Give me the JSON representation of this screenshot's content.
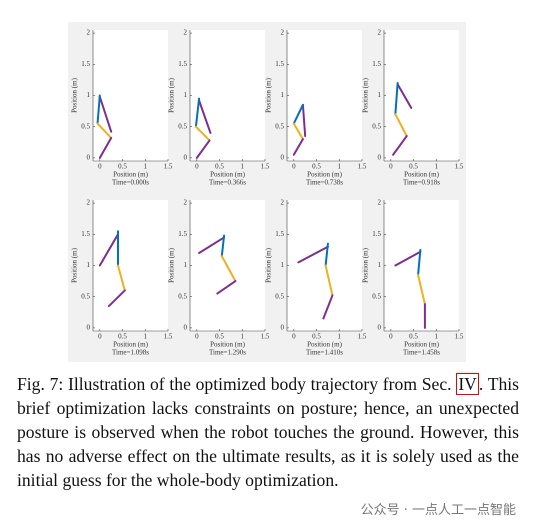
{
  "figure": {
    "xlabel": "Position (m)",
    "ylabel": "Position (m)",
    "xlim": [
      -0.15,
      1.5
    ],
    "ylim": [
      -0.05,
      2.05
    ],
    "xticks": [
      0,
      0.5,
      1,
      1.5
    ],
    "yticks": [
      0,
      0.5,
      1,
      1.5,
      2
    ],
    "panels": [
      {
        "time": "Time=0.000s",
        "body": [
          {
            "color": "#7e2f8e",
            "x": [
              0.0,
              0.25
            ],
            "y": [
              0.98,
              0.42
            ]
          },
          {
            "color": "#0072bd",
            "x": [
              -0.05,
              0.0
            ],
            "y": [
              0.55,
              1.0
            ]
          },
          {
            "color": "#edb120",
            "x": [
              -0.05,
              0.25
            ],
            "y": [
              0.55,
              0.32
            ]
          },
          {
            "color": "#7e2f8e",
            "x": [
              0.25,
              0.0
            ],
            "y": [
              0.32,
              0.0
            ]
          }
        ]
      },
      {
        "time": "Time=0.366s",
        "body": [
          {
            "color": "#7e2f8e",
            "x": [
              0.05,
              0.3
            ],
            "y": [
              0.92,
              0.4
            ]
          },
          {
            "color": "#0072bd",
            "x": [
              -0.02,
              0.05
            ],
            "y": [
              0.5,
              0.95
            ]
          },
          {
            "color": "#edb120",
            "x": [
              -0.02,
              0.28
            ],
            "y": [
              0.5,
              0.28
            ]
          },
          {
            "color": "#7e2f8e",
            "x": [
              0.28,
              0.0
            ],
            "y": [
              0.28,
              0.0
            ]
          }
        ]
      },
      {
        "time": "Time=0.738s",
        "body": [
          {
            "color": "#7e2f8e",
            "x": [
              0.2,
              0.25
            ],
            "y": [
              0.85,
              0.35
            ]
          },
          {
            "color": "#0072bd",
            "x": [
              0.0,
              0.2
            ],
            "y": [
              0.55,
              0.85
            ]
          },
          {
            "color": "#edb120",
            "x": [
              0.0,
              0.2
            ],
            "y": [
              0.55,
              0.3
            ]
          },
          {
            "color": "#7e2f8e",
            "x": [
              0.2,
              0.0
            ],
            "y": [
              0.3,
              0.05
            ]
          }
        ]
      },
      {
        "time": "Time=0.918s",
        "body": [
          {
            "color": "#7e2f8e",
            "x": [
              0.15,
              0.45
            ],
            "y": [
              1.18,
              0.8
            ]
          },
          {
            "color": "#0072bd",
            "x": [
              0.1,
              0.15
            ],
            "y": [
              0.7,
              1.2
            ]
          },
          {
            "color": "#edb120",
            "x": [
              0.1,
              0.35
            ],
            "y": [
              0.7,
              0.35
            ]
          },
          {
            "color": "#7e2f8e",
            "x": [
              0.35,
              0.05
            ],
            "y": [
              0.35,
              0.05
            ]
          }
        ]
      },
      {
        "time": "Time=1.098s",
        "body": [
          {
            "color": "#7e2f8e",
            "x": [
              0.4,
              0.0
            ],
            "y": [
              1.5,
              1.0
            ]
          },
          {
            "color": "#0072bd",
            "x": [
              0.4,
              0.4
            ],
            "y": [
              1.0,
              1.55
            ]
          },
          {
            "color": "#edb120",
            "x": [
              0.4,
              0.55
            ],
            "y": [
              1.0,
              0.6
            ]
          },
          {
            "color": "#7e2f8e",
            "x": [
              0.55,
              0.2
            ],
            "y": [
              0.6,
              0.35
            ]
          }
        ]
      },
      {
        "time": "Time=1.290s",
        "body": [
          {
            "color": "#7e2f8e",
            "x": [
              0.6,
              0.05
            ],
            "y": [
              1.45,
              1.2
            ]
          },
          {
            "color": "#0072bd",
            "x": [
              0.55,
              0.6
            ],
            "y": [
              1.15,
              1.48
            ]
          },
          {
            "color": "#edb120",
            "x": [
              0.55,
              0.85
            ],
            "y": [
              1.15,
              0.75
            ]
          },
          {
            "color": "#7e2f8e",
            "x": [
              0.85,
              0.45
            ],
            "y": [
              0.75,
              0.55
            ]
          }
        ]
      },
      {
        "time": "Time=1.410s",
        "body": [
          {
            "color": "#7e2f8e",
            "x": [
              0.75,
              0.1
            ],
            "y": [
              1.3,
              1.05
            ]
          },
          {
            "color": "#0072bd",
            "x": [
              0.7,
              0.75
            ],
            "y": [
              1.0,
              1.35
            ]
          },
          {
            "color": "#edb120",
            "x": [
              0.7,
              0.85
            ],
            "y": [
              1.0,
              0.52
            ]
          },
          {
            "color": "#7e2f8e",
            "x": [
              0.85,
              0.65
            ],
            "y": [
              0.52,
              0.15
            ]
          }
        ]
      },
      {
        "time": "Time=1.458s",
        "body": [
          {
            "color": "#7e2f8e",
            "x": [
              0.65,
              0.1
            ],
            "y": [
              1.22,
              1.0
            ]
          },
          {
            "color": "#0072bd",
            "x": [
              0.6,
              0.65
            ],
            "y": [
              0.85,
              1.25
            ]
          },
          {
            "color": "#edb120",
            "x": [
              0.6,
              0.75
            ],
            "y": [
              0.85,
              0.38
            ]
          },
          {
            "color": "#7e2f8e",
            "x": [
              0.75,
              0.75
            ],
            "y": [
              0.38,
              0.0
            ]
          }
        ]
      }
    ]
  },
  "caption": {
    "prefix": "Fig. 7: Illustration of the optimized body trajectory from Sec.",
    "ref": "IV",
    "text": ". This brief optimization lacks constraints on posture; hence, an unexpected posture is observed when the robot touches the ground. However, this has no adverse effect on the ultimate results, as it is solely used as the initial guess for the whole-body optimization."
  },
  "watermark": "公众号 · 一点人工一点智能"
}
